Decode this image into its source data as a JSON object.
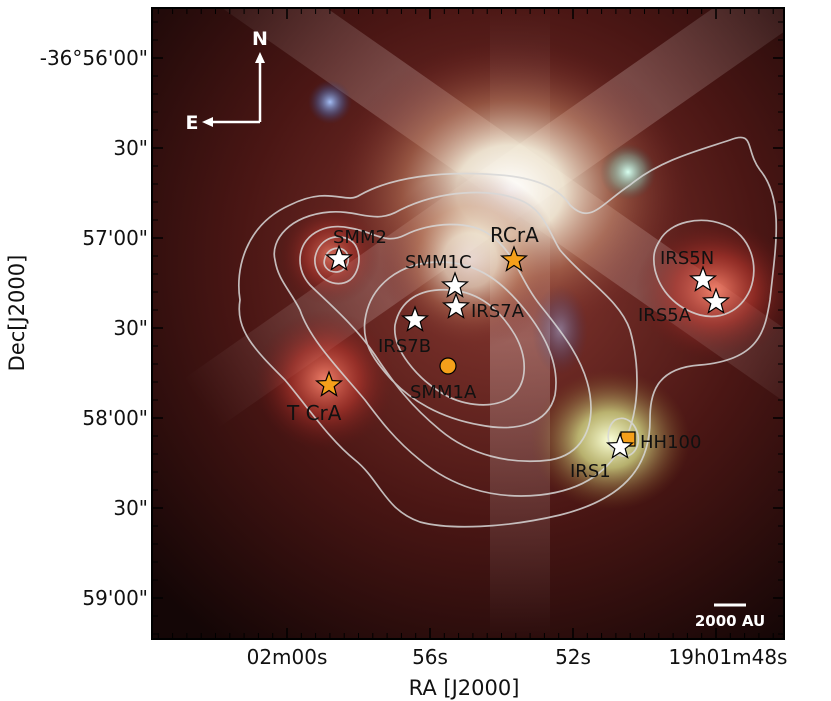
{
  "axes": {
    "xlabel": "RA [J2000]",
    "ylabel": "Dec[J2000]",
    "x_ticks": [
      "02m00s",
      "56s",
      "52s",
      "19h01m48s"
    ],
    "y_ticks": [
      "-36°56'00\"",
      "30\"",
      "57'00\"",
      "30\"",
      "58'00\"",
      "30\"",
      "59'00\""
    ]
  },
  "compass": {
    "north": "N",
    "east": "E"
  },
  "scalebar": {
    "label": "2000 AU"
  },
  "sources": [
    {
      "label": "SMM2",
      "marker": "star-white"
    },
    {
      "label": "RCrA",
      "marker": "star-orange"
    },
    {
      "label": "SMM1C",
      "marker": "star-white"
    },
    {
      "label": "IRS7A",
      "marker": "star-white"
    },
    {
      "label": "IRS7B",
      "marker": "star-white"
    },
    {
      "label": "SMM1A",
      "marker": "circle-orange"
    },
    {
      "label": "T CrA",
      "marker": "star-orange"
    },
    {
      "label": "IRS5N",
      "marker": "star-white"
    },
    {
      "label": "IRS5A",
      "marker": "star-white"
    },
    {
      "label": "HH100",
      "marker": "square-orange"
    },
    {
      "label": "IRS1",
      "marker": "star-white"
    }
  ],
  "colors": {
    "white_marker": "#ffffff",
    "orange_marker": "#f5a01a",
    "contour": "#d8d8d8"
  }
}
